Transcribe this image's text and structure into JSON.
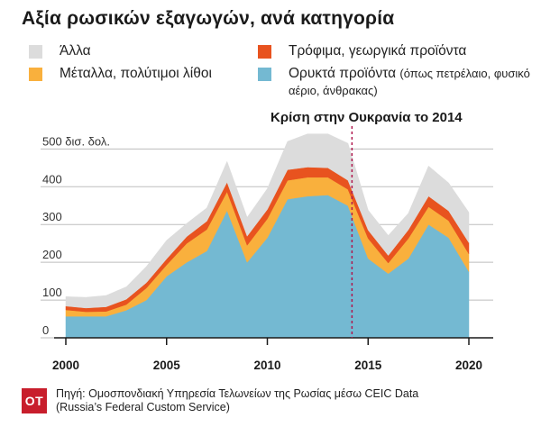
{
  "title": "Αξία ρωσικών εξαγωγών, ανά κατηγορία",
  "legend": [
    {
      "key": "other",
      "label": "Άλλα",
      "note": "",
      "color": "#dcdcdc"
    },
    {
      "key": "food",
      "label": "Τρόφιμα, γεωργικά προϊόντα",
      "note": "",
      "color": "#e8531f"
    },
    {
      "key": "metals",
      "label": "Μέταλλα, πολύτιμοι λίθοι",
      "note": "",
      "color": "#f9b03d"
    },
    {
      "key": "fuels",
      "label": "Ορυκτά προϊόντα",
      "note": "(όπως πετρέλαιο, φυσικό αέριο, άνθρακας)",
      "color": "#74b9d2"
    }
  ],
  "chart_data": {
    "type": "area",
    "stacked": true,
    "title": "Αξία ρωσικών εξαγωγών, ανά κατηγορία",
    "y_unit_label": "500 δισ. δολ.",
    "ylim": [
      0,
      520
    ],
    "xlim": [
      2000,
      2021
    ],
    "y_ticks": [
      0,
      100,
      200,
      300,
      400
    ],
    "x_ticks": [
      2000,
      2005,
      2010,
      2015,
      2020
    ],
    "x": [
      2000,
      2001,
      2002,
      2003,
      2004,
      2005,
      2006,
      2007,
      2008,
      2009,
      2010,
      2011,
      2012,
      2013,
      2014,
      2015,
      2016,
      2017,
      2018,
      2019,
      2020
    ],
    "series": [
      {
        "name": "Ορυκτά προϊόντα",
        "key": "fuels",
        "color": "#74b9d2",
        "values": [
          57,
          57,
          57,
          73,
          100,
          163,
          200,
          230,
          337,
          200,
          265,
          367,
          375,
          378,
          350,
          210,
          170,
          210,
          300,
          265,
          175
        ]
      },
      {
        "name": "Μέταλλα, πολύτιμοι λίθοι",
        "key": "metals",
        "color": "#f9b03d",
        "values": [
          17,
          12,
          13,
          15,
          32,
          30,
          50,
          57,
          50,
          45,
          50,
          50,
          50,
          47,
          43,
          53,
          28,
          53,
          47,
          45,
          47
        ]
      },
      {
        "name": "Τρόφιμα, γεωργικά προϊόντα",
        "key": "food",
        "color": "#e8531f",
        "values": [
          10,
          10,
          12,
          14,
          14,
          16,
          18,
          22,
          25,
          24,
          25,
          28,
          27,
          25,
          24,
          22,
          20,
          23,
          28,
          26,
          30
        ]
      },
      {
        "name": "Άλλα",
        "key": "other",
        "color": "#dcdcdc",
        "values": [
          25,
          28,
          30,
          33,
          43,
          49,
          35,
          35,
          55,
          50,
          55,
          75,
          88,
          90,
          98,
          53,
          53,
          44,
          80,
          74,
          80
        ]
      }
    ],
    "annotations": [
      {
        "x": 2014.2,
        "label": "Κρίση στην Ουκρανία το  2014"
      }
    ]
  },
  "footer": {
    "logo": "OT",
    "source_line1": "Πηγή: Ομοσπονδιακή Υπηρεσία Τελωνείων της Ρωσίας μέσω CEIC Data",
    "source_line2": "(Russia’s Federal Custom Service)"
  }
}
